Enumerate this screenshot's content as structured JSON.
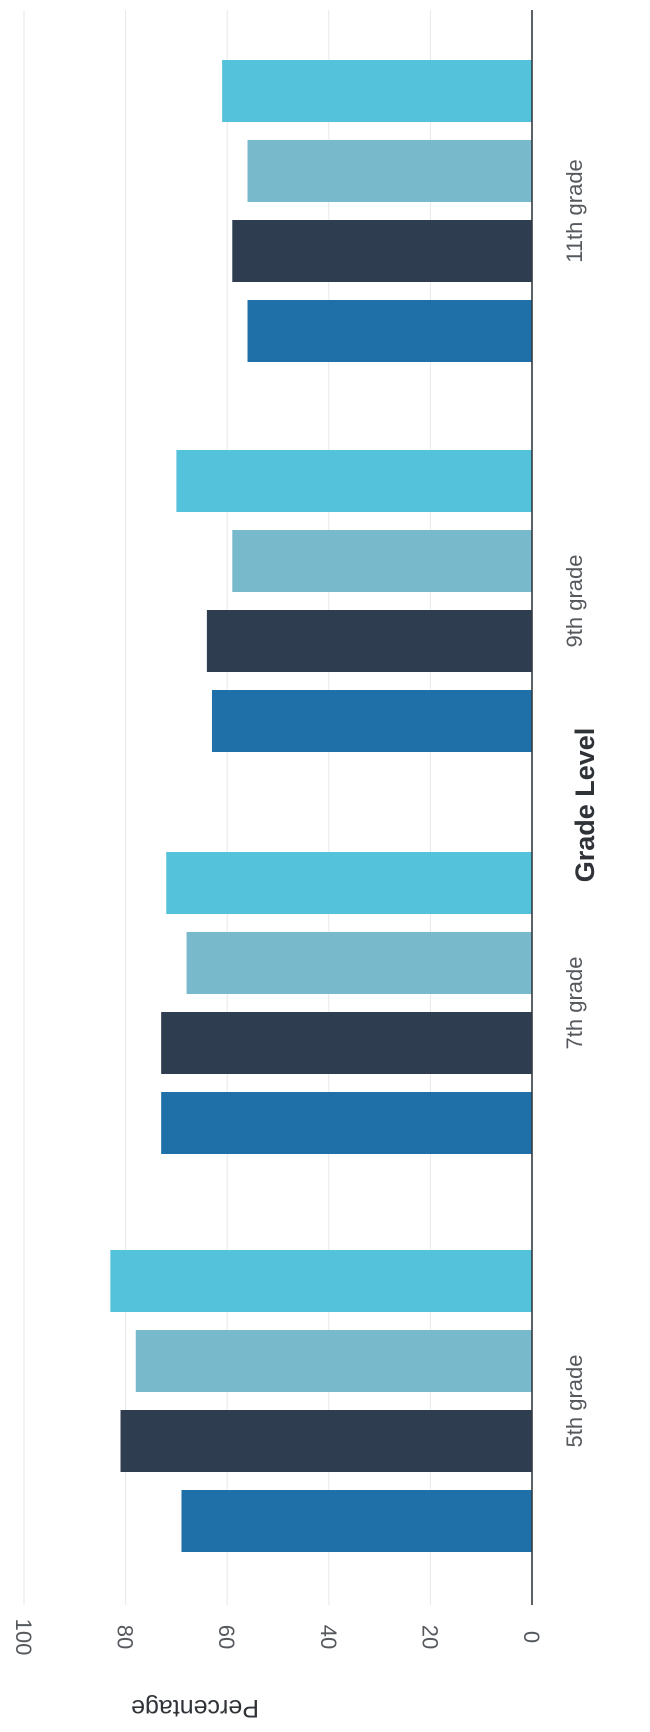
{
  "chart_data": {
    "type": "bar",
    "orientation": "horizontal",
    "rotated": true,
    "categories": [
      "5th grade",
      "7th grade",
      "9th grade",
      "11th grade"
    ],
    "series": [
      {
        "color": "#1f6fa8",
        "values": [
          69,
          73,
          63,
          56
        ]
      },
      {
        "color": "#2e3d4f",
        "values": [
          81,
          73,
          64,
          59
        ]
      },
      {
        "color": "#78b9cc",
        "values": [
          78,
          68,
          59,
          56
        ]
      },
      {
        "color": "#55c2dc",
        "values": [
          83,
          72,
          70,
          61
        ]
      }
    ],
    "xlim": [
      0,
      100
    ],
    "ticks": [
      "0",
      "20",
      "40",
      "60",
      "80",
      "100"
    ],
    "xlabel": "Grade Level",
    "ylabel": "Percentage",
    "grid": true,
    "legend": "none"
  }
}
